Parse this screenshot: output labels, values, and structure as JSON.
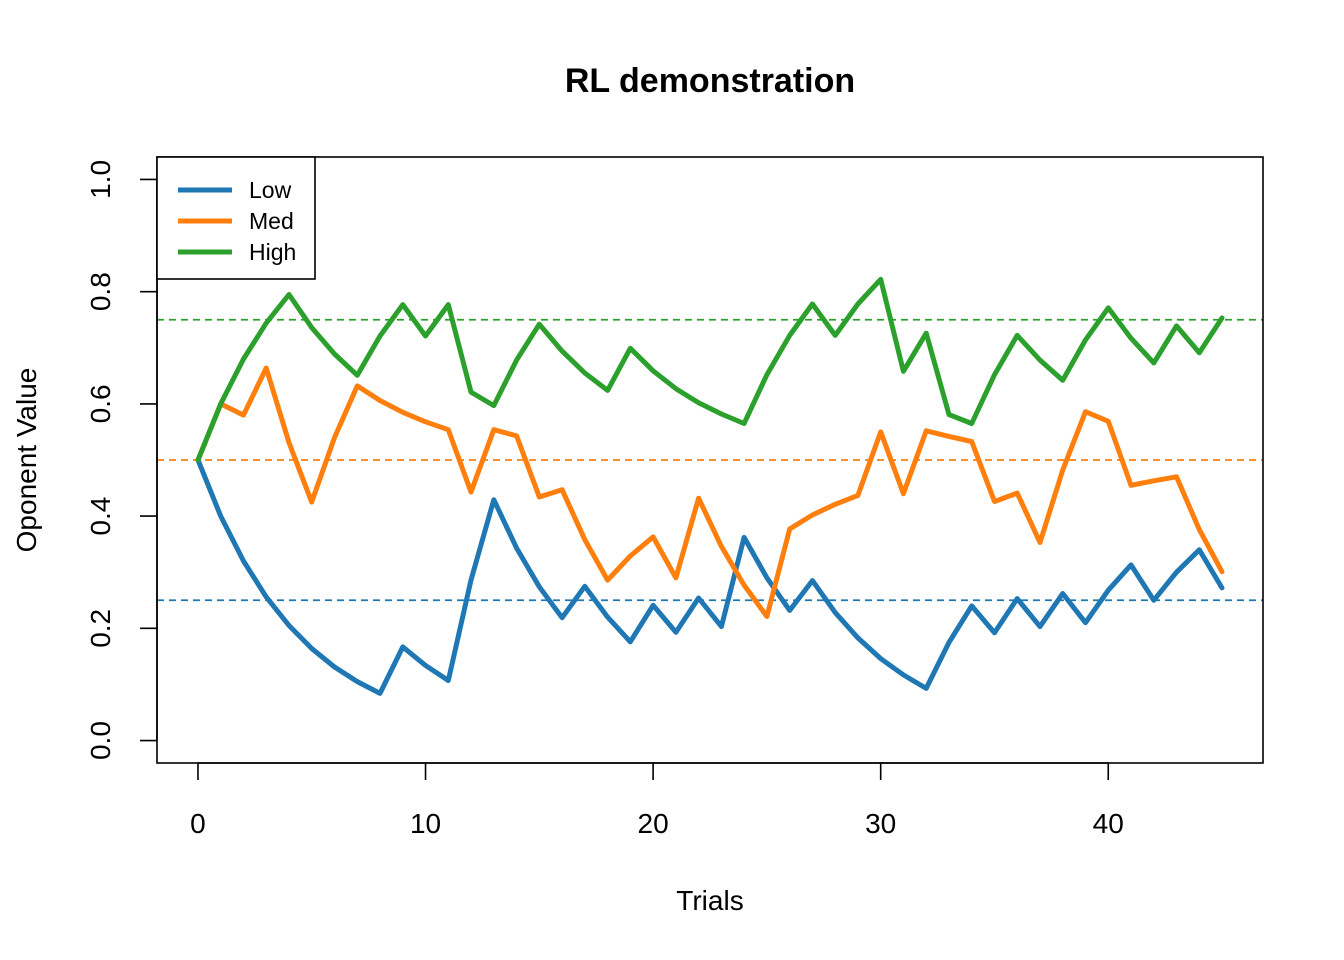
{
  "chart_data": {
    "type": "line",
    "title": "RL demonstration",
    "xlabel": "Trials",
    "ylabel": "Oponent Value",
    "xlim": [
      -1.8,
      46.8
    ],
    "ylim": [
      -0.04,
      1.04
    ],
    "xticks": [
      0,
      10,
      20,
      30,
      40
    ],
    "yticks": [
      "0.0",
      "0.2",
      "0.4",
      "0.6",
      "0.8",
      "1.0"
    ],
    "legend_position": "top-left",
    "grid": false,
    "series": [
      {
        "name": "Low",
        "color": "#1F77B4",
        "x": [
          0,
          1,
          2,
          3,
          4,
          5,
          6,
          7,
          8,
          9,
          10,
          11,
          12,
          13,
          14,
          15,
          16,
          17,
          18,
          19,
          20,
          21,
          22,
          23,
          24,
          25,
          26,
          27,
          28,
          29,
          30,
          31,
          32,
          33,
          34,
          35,
          36,
          37,
          38,
          39,
          40,
          41,
          42,
          43,
          44,
          45
        ],
        "values": [
          0.5,
          0.4,
          0.32,
          0.256,
          0.205,
          0.164,
          0.131,
          0.105,
          0.084,
          0.167,
          0.134,
          0.107,
          0.286,
          0.429,
          0.343,
          0.274,
          0.219,
          0.275,
          0.22,
          0.176,
          0.241,
          0.193,
          0.254,
          0.203,
          0.362,
          0.29,
          0.232,
          0.285,
          0.228,
          0.183,
          0.146,
          0.117,
          0.093,
          0.175,
          0.24,
          0.192,
          0.253,
          0.203,
          0.262,
          0.21,
          0.268,
          0.313,
          0.25,
          0.3,
          0.34,
          0.272
        ],
        "reference": 0.25
      },
      {
        "name": "Med",
        "color": "#FF7F0E",
        "x": [
          0,
          1,
          2,
          3,
          4,
          5,
          6,
          7,
          8,
          9,
          10,
          11,
          12,
          13,
          14,
          15,
          16,
          17,
          18,
          19,
          20,
          21,
          22,
          23,
          24,
          25,
          26,
          27,
          28,
          29,
          30,
          31,
          32,
          33,
          34,
          35,
          36,
          37,
          38,
          39,
          40,
          41,
          42,
          43,
          44,
          45
        ],
        "values": [
          0.5,
          0.6,
          0.58,
          0.664,
          0.531,
          0.425,
          0.54,
          0.632,
          0.606,
          0.585,
          0.568,
          0.554,
          0.443,
          0.554,
          0.543,
          0.434,
          0.447,
          0.358,
          0.286,
          0.329,
          0.363,
          0.29,
          0.432,
          0.346,
          0.277,
          0.221,
          0.377,
          0.402,
          0.421,
          0.437,
          0.55,
          0.44,
          0.552,
          0.542,
          0.533,
          0.426,
          0.441,
          0.353,
          0.482,
          0.586,
          0.569,
          0.455,
          0.463,
          0.47,
          0.376,
          0.301
        ],
        "reference": 0.5
      },
      {
        "name": "High",
        "color": "#2CA02C",
        "x": [
          0,
          1,
          2,
          3,
          4,
          5,
          6,
          7,
          8,
          9,
          10,
          11,
          12,
          13,
          14,
          15,
          16,
          17,
          18,
          19,
          20,
          21,
          22,
          23,
          24,
          25,
          26,
          27,
          28,
          29,
          30,
          31,
          32,
          33,
          34,
          35,
          36,
          37,
          38,
          39,
          40,
          41,
          42,
          43,
          44,
          45
        ],
        "values": [
          0.5,
          0.6,
          0.68,
          0.744,
          0.795,
          0.736,
          0.689,
          0.651,
          0.721,
          0.777,
          0.721,
          0.777,
          0.621,
          0.597,
          0.678,
          0.742,
          0.694,
          0.655,
          0.624,
          0.699,
          0.659,
          0.627,
          0.602,
          0.582,
          0.565,
          0.652,
          0.722,
          0.778,
          0.722,
          0.778,
          0.822,
          0.658,
          0.726,
          0.581,
          0.565,
          0.652,
          0.722,
          0.678,
          0.642,
          0.714,
          0.771,
          0.717,
          0.673,
          0.739,
          0.691,
          0.753
        ],
        "reference": 0.75
      }
    ]
  }
}
